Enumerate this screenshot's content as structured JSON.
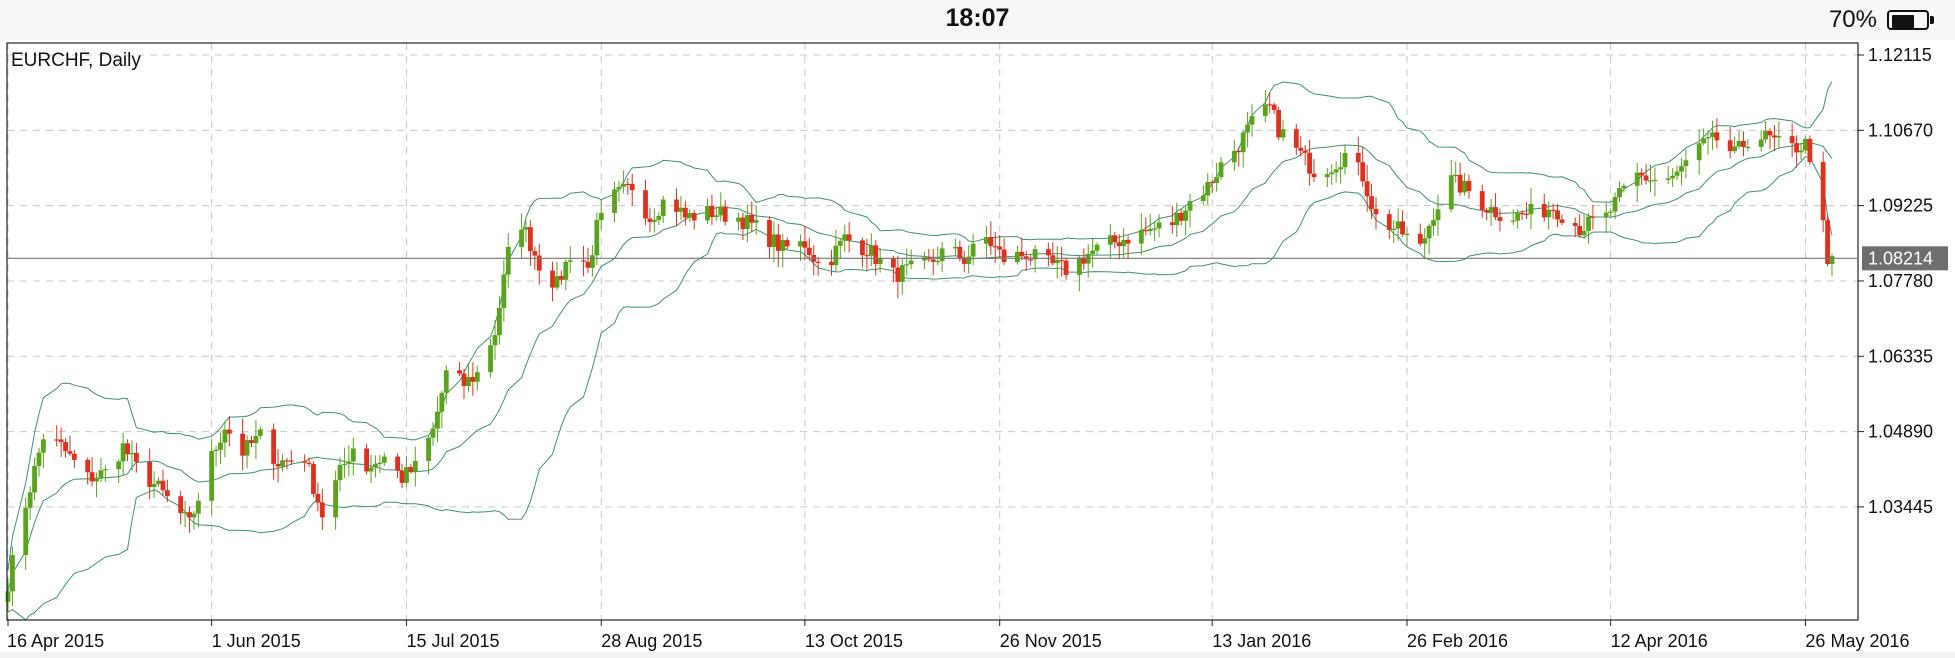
{
  "status_bar": {
    "time": "18:07",
    "battery_percent": "70%",
    "battery_level": 0.7,
    "battery_icon": "battery-icon"
  },
  "chart_data": {
    "type": "candlestick",
    "title": "EURCHF, Daily",
    "y_ticks": [
      1.12115,
      1.1067,
      1.09225,
      1.0778,
      1.06335,
      1.0489,
      1.03445
    ],
    "y_tick_labels": [
      "1.12115",
      "1.10670",
      "1.09225",
      "1.07780",
      "1.06335",
      "1.04890",
      "1.03445"
    ],
    "ylim": [
      1.01755,
      1.12115
    ],
    "x_tick_labels": [
      "16 Apr 2015",
      "1 Jun 2015",
      "15 Jul 2015",
      "28 Aug 2015",
      "13 Oct 2015",
      "26 Nov 2015",
      "13 Jan 2016",
      "26 Feb 2016",
      "12 Apr 2016",
      "26 May 2016"
    ],
    "xlim": [
      "2015-04-16",
      "2016-06-01"
    ],
    "current_price": 1.08214,
    "current_price_label": "1.08214",
    "grid": true,
    "colors": {
      "up": "#5aa31c",
      "down": "#e0301e",
      "bands": "#3c9470",
      "grid": "#c8c8c8",
      "price_line": "#777777",
      "price_tag": "#6e6e6e"
    },
    "indicator": "Bollinger Bands",
    "close_anchors": [
      [
        "2015-04-16",
        1.02
      ],
      [
        "2015-04-20",
        1.035
      ],
      [
        "2015-04-24",
        1.048
      ],
      [
        "2015-04-28",
        1.046
      ],
      [
        "2015-05-04",
        1.04
      ],
      [
        "2015-05-08",
        1.041
      ],
      [
        "2015-05-12",
        1.046
      ],
      [
        "2015-05-15",
        1.042
      ],
      [
        "2015-05-20",
        1.038
      ],
      [
        "2015-05-27",
        1.031
      ],
      [
        "2015-06-01",
        1.044
      ],
      [
        "2015-06-04",
        1.05
      ],
      [
        "2015-06-08",
        1.045
      ],
      [
        "2015-06-12",
        1.048
      ],
      [
        "2015-06-16",
        1.043
      ],
      [
        "2015-06-22",
        1.044
      ],
      [
        "2015-06-26",
        1.033
      ],
      [
        "2015-06-30",
        1.041
      ],
      [
        "2015-07-03",
        1.046
      ],
      [
        "2015-07-06",
        1.042
      ],
      [
        "2015-07-10",
        1.044
      ],
      [
        "2015-07-14",
        1.04
      ],
      [
        "2015-07-17",
        1.042
      ],
      [
        "2015-07-21",
        1.049
      ],
      [
        "2015-07-24",
        1.06
      ],
      [
        "2015-07-28",
        1.058
      ],
      [
        "2015-07-31",
        1.06
      ],
      [
        "2015-08-04",
        1.068
      ],
      [
        "2015-08-07",
        1.083
      ],
      [
        "2015-08-10",
        1.089
      ],
      [
        "2015-08-14",
        1.081
      ],
      [
        "2015-08-18",
        1.077
      ],
      [
        "2015-08-22",
        1.085
      ],
      [
        "2015-08-25",
        1.08
      ],
      [
        "2015-08-27",
        1.088
      ],
      [
        "2015-08-31",
        1.094
      ],
      [
        "2015-09-04",
        1.096
      ],
      [
        "2015-09-08",
        1.09
      ],
      [
        "2015-09-12",
        1.094
      ],
      [
        "2015-09-16",
        1.09
      ],
      [
        "2015-09-22",
        1.091
      ],
      [
        "2015-09-28",
        1.09
      ],
      [
        "2015-10-02",
        1.088
      ],
      [
        "2015-10-08",
        1.084
      ],
      [
        "2015-10-13",
        1.085
      ],
      [
        "2015-10-17",
        1.08
      ],
      [
        "2015-10-22",
        1.086
      ],
      [
        "2015-10-27",
        1.084
      ],
      [
        "2015-11-02",
        1.079
      ],
      [
        "2015-11-06",
        1.08
      ],
      [
        "2015-11-10",
        1.081
      ],
      [
        "2015-11-14",
        1.084
      ],
      [
        "2015-11-18",
        1.082
      ],
      [
        "2015-11-23",
        1.086
      ],
      [
        "2015-11-27",
        1.082
      ],
      [
        "2015-12-02",
        1.083
      ],
      [
        "2015-12-07",
        1.081
      ],
      [
        "2015-12-11",
        1.08
      ],
      [
        "2015-12-16",
        1.083
      ],
      [
        "2015-12-21",
        1.085
      ],
      [
        "2015-12-28",
        1.087
      ],
      [
        "2016-01-04",
        1.089
      ],
      [
        "2016-01-08",
        1.093
      ],
      [
        "2016-01-12",
        1.096
      ],
      [
        "2016-01-15",
        1.1
      ],
      [
        "2016-01-19",
        1.104
      ],
      [
        "2016-01-22",
        1.108
      ],
      [
        "2016-01-26",
        1.111
      ],
      [
        "2016-01-28",
        1.107
      ],
      [
        "2016-02-01",
        1.103
      ],
      [
        "2016-02-05",
        1.099
      ],
      [
        "2016-02-09",
        1.1
      ],
      [
        "2016-02-12",
        1.102
      ],
      [
        "2016-02-16",
        1.098
      ],
      [
        "2016-02-19",
        1.09
      ],
      [
        "2016-02-25",
        1.087
      ],
      [
        "2016-02-29",
        1.084
      ],
      [
        "2016-03-03",
        1.091
      ],
      [
        "2016-03-07",
        1.097
      ],
      [
        "2016-03-11",
        1.095
      ],
      [
        "2016-03-15",
        1.092
      ],
      [
        "2016-03-20",
        1.09
      ],
      [
        "2016-03-26",
        1.091
      ],
      [
        "2016-03-30",
        1.092
      ],
      [
        "2016-04-05",
        1.088
      ],
      [
        "2016-04-11",
        1.09
      ],
      [
        "2016-04-14",
        1.094
      ],
      [
        "2016-04-18",
        1.098
      ],
      [
        "2016-04-23",
        1.097
      ],
      [
        "2016-04-27",
        1.098
      ],
      [
        "2016-05-01",
        1.103
      ],
      [
        "2016-05-06",
        1.105
      ],
      [
        "2016-05-10",
        1.102
      ],
      [
        "2016-05-14",
        1.106
      ],
      [
        "2016-05-18",
        1.105
      ],
      [
        "2016-05-22",
        1.103
      ],
      [
        "2016-05-26",
        1.104
      ],
      [
        "2016-05-28",
        1.1
      ],
      [
        "2016-05-29",
        1.094
      ],
      [
        "2016-05-30",
        1.088
      ],
      [
        "2016-05-31",
        1.08
      ],
      [
        "2016-06-01",
        1.0821
      ]
    ]
  }
}
